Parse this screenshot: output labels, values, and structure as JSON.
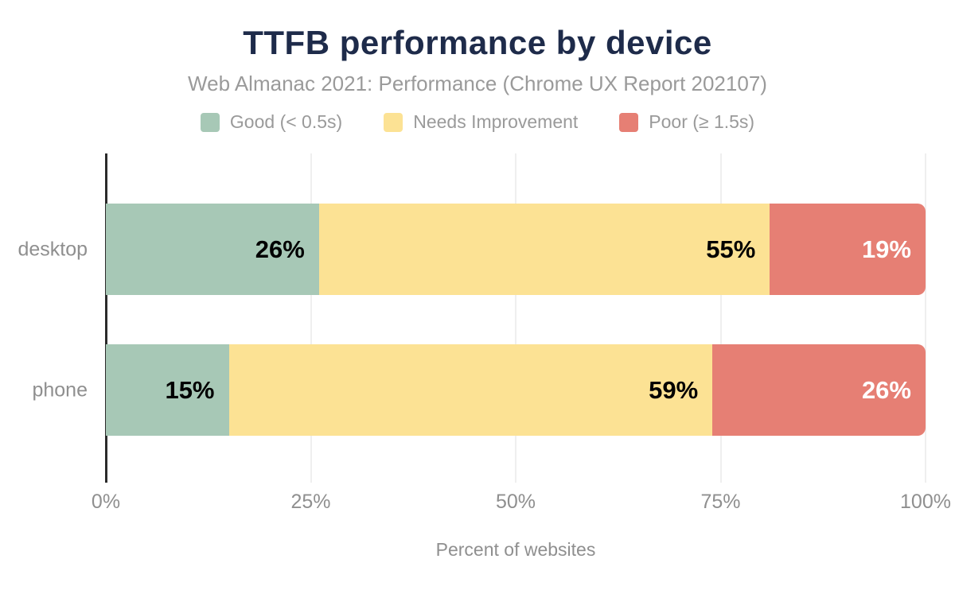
{
  "title": "TTFB performance by device",
  "subtitle": "Web Almanac 2021: Performance (Chrome UX Report 202107)",
  "legend": [
    {
      "label": "Good (< 0.5s)",
      "color": "#a7c8b6"
    },
    {
      "label": "Needs Improvement",
      "color": "#fce294"
    },
    {
      "label": "Poor (≥ 1.5s)",
      "color": "#e67f74"
    }
  ],
  "chart_data": {
    "type": "bar",
    "orientation": "horizontal",
    "stacked": true,
    "title": "TTFB performance by device",
    "subtitle": "Web Almanac 2021: Performance (Chrome UX Report 202107)",
    "categories": [
      "desktop",
      "phone"
    ],
    "series": [
      {
        "name": "Good (< 0.5s)",
        "color": "#a7c8b6",
        "label_color": "#000000",
        "values": [
          26,
          15
        ]
      },
      {
        "name": "Needs Improvement",
        "color": "#fce294",
        "label_color": "#000000",
        "values": [
          55,
          59
        ]
      },
      {
        "name": "Poor (≥ 1.5s)",
        "color": "#e67f74",
        "label_color": "#ffffff",
        "values": [
          19,
          26
        ]
      }
    ],
    "value_suffix": "%",
    "xlabel": "Percent of websites",
    "ylabel": "",
    "xlim": [
      0,
      100
    ],
    "x_ticks": [
      0,
      25,
      50,
      75,
      100
    ],
    "x_tick_labels": [
      "0%",
      "25%",
      "50%",
      "75%",
      "100%"
    ],
    "grid": true,
    "legend_position": "top"
  },
  "colors": {
    "title": "#1e2b4a",
    "subtitle": "#9a9a9a",
    "axis_text": "#8f8f8f",
    "gridline": "#efefef",
    "axis_line": "#2b2b2b"
  }
}
